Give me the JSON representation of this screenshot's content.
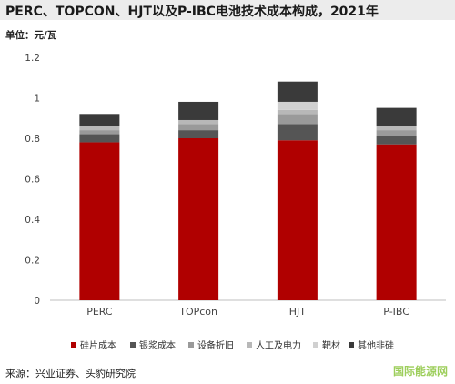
{
  "header": {
    "title": "PERC、TOPCON、HJT以及P-IBC电池技术成本构成，2021年",
    "unit": "单位：元/瓦"
  },
  "footer": {
    "source": "来源：兴业证券、头豹研究院",
    "watermark": "国际能源网"
  },
  "colors": {
    "silicon": "#b00000",
    "silver_paste": "#555555",
    "depreciation": "#9a9a9a",
    "labor_power": "#b8b8b8",
    "target": "#d0d0d0",
    "other": "#3a3a3a"
  },
  "chart_data": {
    "type": "bar",
    "stacked": true,
    "categories": [
      "PERC",
      "TOPcon",
      "HJT",
      "P-IBC"
    ],
    "series": [
      {
        "name": "硅片成本",
        "values": [
          0.78,
          0.8,
          0.79,
          0.77
        ]
      },
      {
        "name": "银浆成本",
        "values": [
          0.04,
          0.04,
          0.08,
          0.04
        ]
      },
      {
        "name": "设备折旧",
        "values": [
          0.02,
          0.03,
          0.05,
          0.03
        ]
      },
      {
        "name": "人工及电力",
        "values": [
          0.02,
          0.02,
          0.02,
          0.02
        ]
      },
      {
        "name": "靶材",
        "values": [
          0.0,
          0.0,
          0.04,
          0.0
        ]
      },
      {
        "name": "其他非硅",
        "values": [
          0.06,
          0.09,
          0.1,
          0.09
        ]
      }
    ],
    "yticks": [
      "0",
      "0.2",
      "0.4",
      "0.6",
      "0.8",
      "1",
      "1.2"
    ],
    "ylim": [
      0,
      1.2
    ],
    "grid": false,
    "legend": "bottom"
  }
}
